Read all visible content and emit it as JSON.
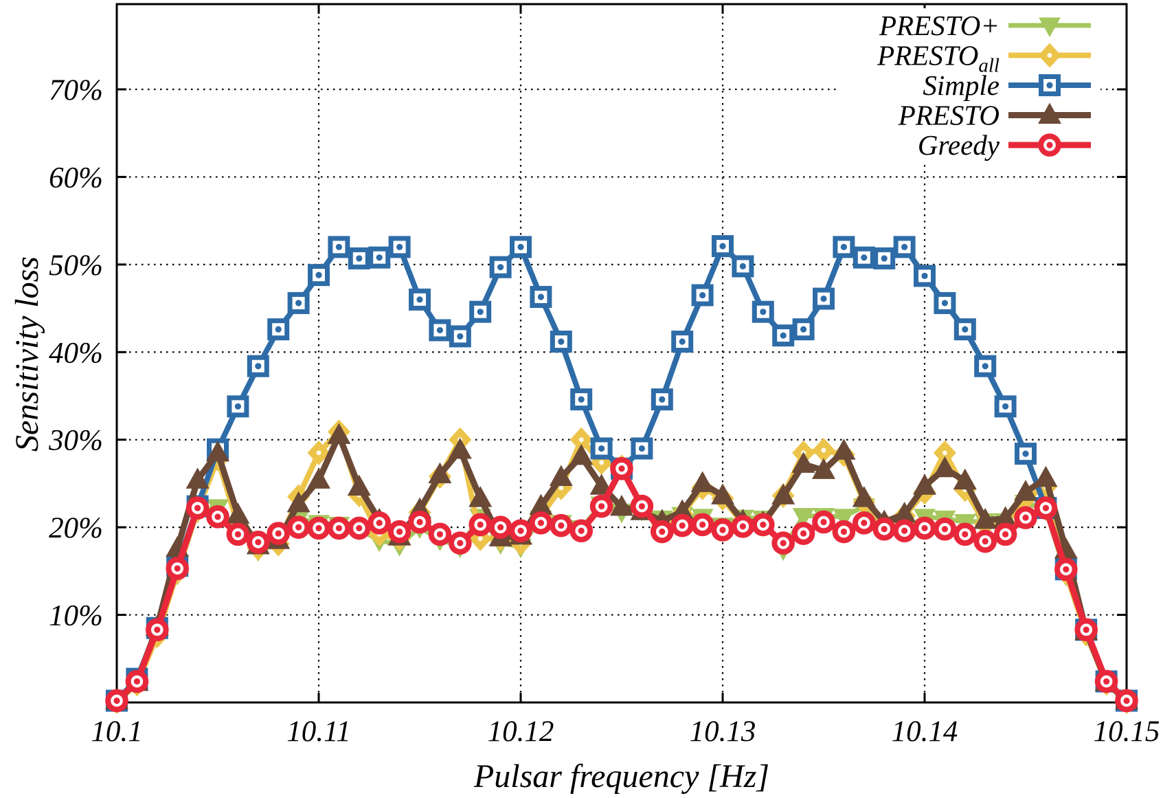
{
  "chart_data": {
    "type": "line",
    "title": "",
    "xlabel": "Pulsar frequency [Hz]",
    "ylabel": "Sensitivity loss",
    "xlim": [
      10.1,
      10.15
    ],
    "ylim": [
      0,
      79.7
    ],
    "grid": true,
    "legend_position": "top-right",
    "background_color": "#ffffff",
    "axis_color": "#000000",
    "x_ticks": [
      {
        "value": 10.1,
        "label": "10.1"
      },
      {
        "value": 10.11,
        "label": "10.11"
      },
      {
        "value": 10.12,
        "label": "10.12"
      },
      {
        "value": 10.13,
        "label": "10.13"
      },
      {
        "value": 10.14,
        "label": "10.14"
      },
      {
        "value": 10.15,
        "label": "10.15"
      }
    ],
    "y_ticks": [
      {
        "value": 10,
        "label": "10%"
      },
      {
        "value": 20,
        "label": "20%"
      },
      {
        "value": 30,
        "label": "30%"
      },
      {
        "value": 40,
        "label": "40%"
      },
      {
        "value": 50,
        "label": "50%"
      },
      {
        "value": 60,
        "label": "60%"
      },
      {
        "value": 70,
        "label": "70%"
      }
    ],
    "x": [
      10.1,
      10.101,
      10.102,
      10.103,
      10.104,
      10.105,
      10.106,
      10.107,
      10.108,
      10.109,
      10.11,
      10.111,
      10.112,
      10.113,
      10.114,
      10.115,
      10.116,
      10.117,
      10.118,
      10.119,
      10.12,
      10.121,
      10.122,
      10.123,
      10.124,
      10.125,
      10.126,
      10.127,
      10.128,
      10.129,
      10.13,
      10.131,
      10.132,
      10.133,
      10.134,
      10.135,
      10.136,
      10.137,
      10.138,
      10.139,
      10.14,
      10.141,
      10.142,
      10.143,
      10.144,
      10.145,
      10.146,
      10.147,
      10.148,
      10.149,
      10.15
    ],
    "series": [
      {
        "name": "PRESTO+",
        "legend_label": "PRESTO+",
        "legend_sub": "",
        "color": "#a5c75e",
        "marker": "triangle-down",
        "values": [
          0.1,
          2.2,
          7.9,
          14.7,
          21.8,
          22.3,
          19.6,
          17.4,
          18.0,
          21.0,
          20.5,
          20.3,
          19.8,
          18.5,
          18.0,
          20.0,
          18.6,
          17.8,
          21.2,
          18.2,
          17.8,
          21.0,
          20.5,
          19.9,
          22.6,
          21.8,
          22.0,
          21.0,
          21.4,
          21.2,
          20.2,
          21.1,
          21.0,
          17.5,
          21.3,
          21.3,
          21.2,
          22.4,
          20.2,
          19.7,
          21.2,
          21.0,
          20.6,
          20.7,
          20.7,
          22.8,
          22.0,
          14.6,
          7.8,
          2.3,
          0.1
        ]
      },
      {
        "name": "PRESTO_all",
        "legend_label": "PRESTO",
        "legend_sub": "all",
        "color": "#ecc44a",
        "marker": "diamond",
        "values": [
          0.1,
          2.1,
          7.6,
          14.9,
          22.0,
          27.8,
          20.2,
          17.6,
          18.1,
          23.5,
          28.5,
          30.9,
          23.7,
          19.2,
          18.7,
          21.7,
          25.8,
          30.0,
          18.7,
          18.7,
          18.2,
          21.3,
          24.5,
          30.0,
          27.4,
          26.9,
          22.3,
          20.3,
          21.5,
          24.5,
          23.3,
          20.4,
          20.3,
          23.6,
          28.5,
          28.8,
          28.3,
          22.9,
          20.4,
          21.3,
          24.0,
          28.5,
          24.3,
          20.4,
          20.4,
          23.3,
          24.6,
          14.8,
          7.8,
          2.2,
          0.1
        ]
      },
      {
        "name": "Simple",
        "legend_label": "Simple",
        "legend_sub": "",
        "color": "#2e6ca8",
        "marker": "square",
        "values": [
          0.2,
          2.7,
          8.5,
          15.6,
          22.4,
          28.9,
          33.8,
          38.4,
          42.6,
          45.6,
          48.8,
          52.0,
          50.7,
          50.8,
          52.0,
          46.0,
          42.5,
          41.8,
          44.6,
          49.7,
          52.0,
          46.3,
          41.2,
          34.6,
          29.0,
          26.7,
          29.0,
          34.6,
          41.2,
          46.5,
          52.1,
          49.8,
          44.6,
          41.9,
          42.6,
          46.1,
          52.0,
          50.8,
          50.7,
          52.0,
          48.7,
          45.6,
          42.6,
          38.4,
          33.8,
          28.4,
          22.2,
          15.2,
          8.3,
          2.4,
          0.2
        ]
      },
      {
        "name": "PRESTO",
        "legend_label": "PRESTO",
        "legend_sub": "",
        "color": "#6a4936",
        "marker": "triangle-up",
        "values": [
          0.2,
          2.3,
          8.6,
          17.6,
          25.4,
          28.5,
          21.4,
          17.9,
          18.5,
          22.7,
          25.4,
          30.5,
          24.6,
          20.8,
          18.9,
          22.0,
          26.0,
          28.8,
          23.3,
          18.8,
          19.0,
          22.4,
          25.7,
          28.1,
          24.7,
          22.3,
          21.8,
          20.7,
          21.8,
          25.0,
          23.6,
          20.7,
          20.5,
          23.6,
          27.2,
          26.5,
          28.7,
          23.3,
          20.6,
          21.5,
          24.7,
          26.7,
          25.3,
          20.8,
          21.0,
          24.0,
          25.6,
          17.4,
          8.1,
          2.3,
          0.2
        ]
      },
      {
        "name": "Greedy",
        "legend_label": "Greedy",
        "legend_sub": "",
        "color": "#e8283a",
        "marker": "circle",
        "values": [
          0.2,
          2.4,
          8.3,
          15.3,
          22.2,
          21.2,
          19.2,
          18.3,
          19.3,
          20.0,
          19.9,
          19.9,
          19.9,
          20.5,
          19.5,
          20.6,
          19.2,
          18.2,
          20.3,
          20.0,
          19.6,
          20.5,
          20.2,
          19.6,
          22.4,
          26.7,
          22.4,
          19.5,
          20.2,
          20.3,
          19.7,
          20.1,
          20.3,
          18.2,
          19.3,
          20.6,
          19.5,
          20.5,
          19.8,
          19.6,
          19.9,
          19.8,
          19.2,
          18.4,
          19.2,
          21.1,
          22.2,
          15.2,
          8.3,
          2.4,
          0.2
        ]
      }
    ]
  }
}
